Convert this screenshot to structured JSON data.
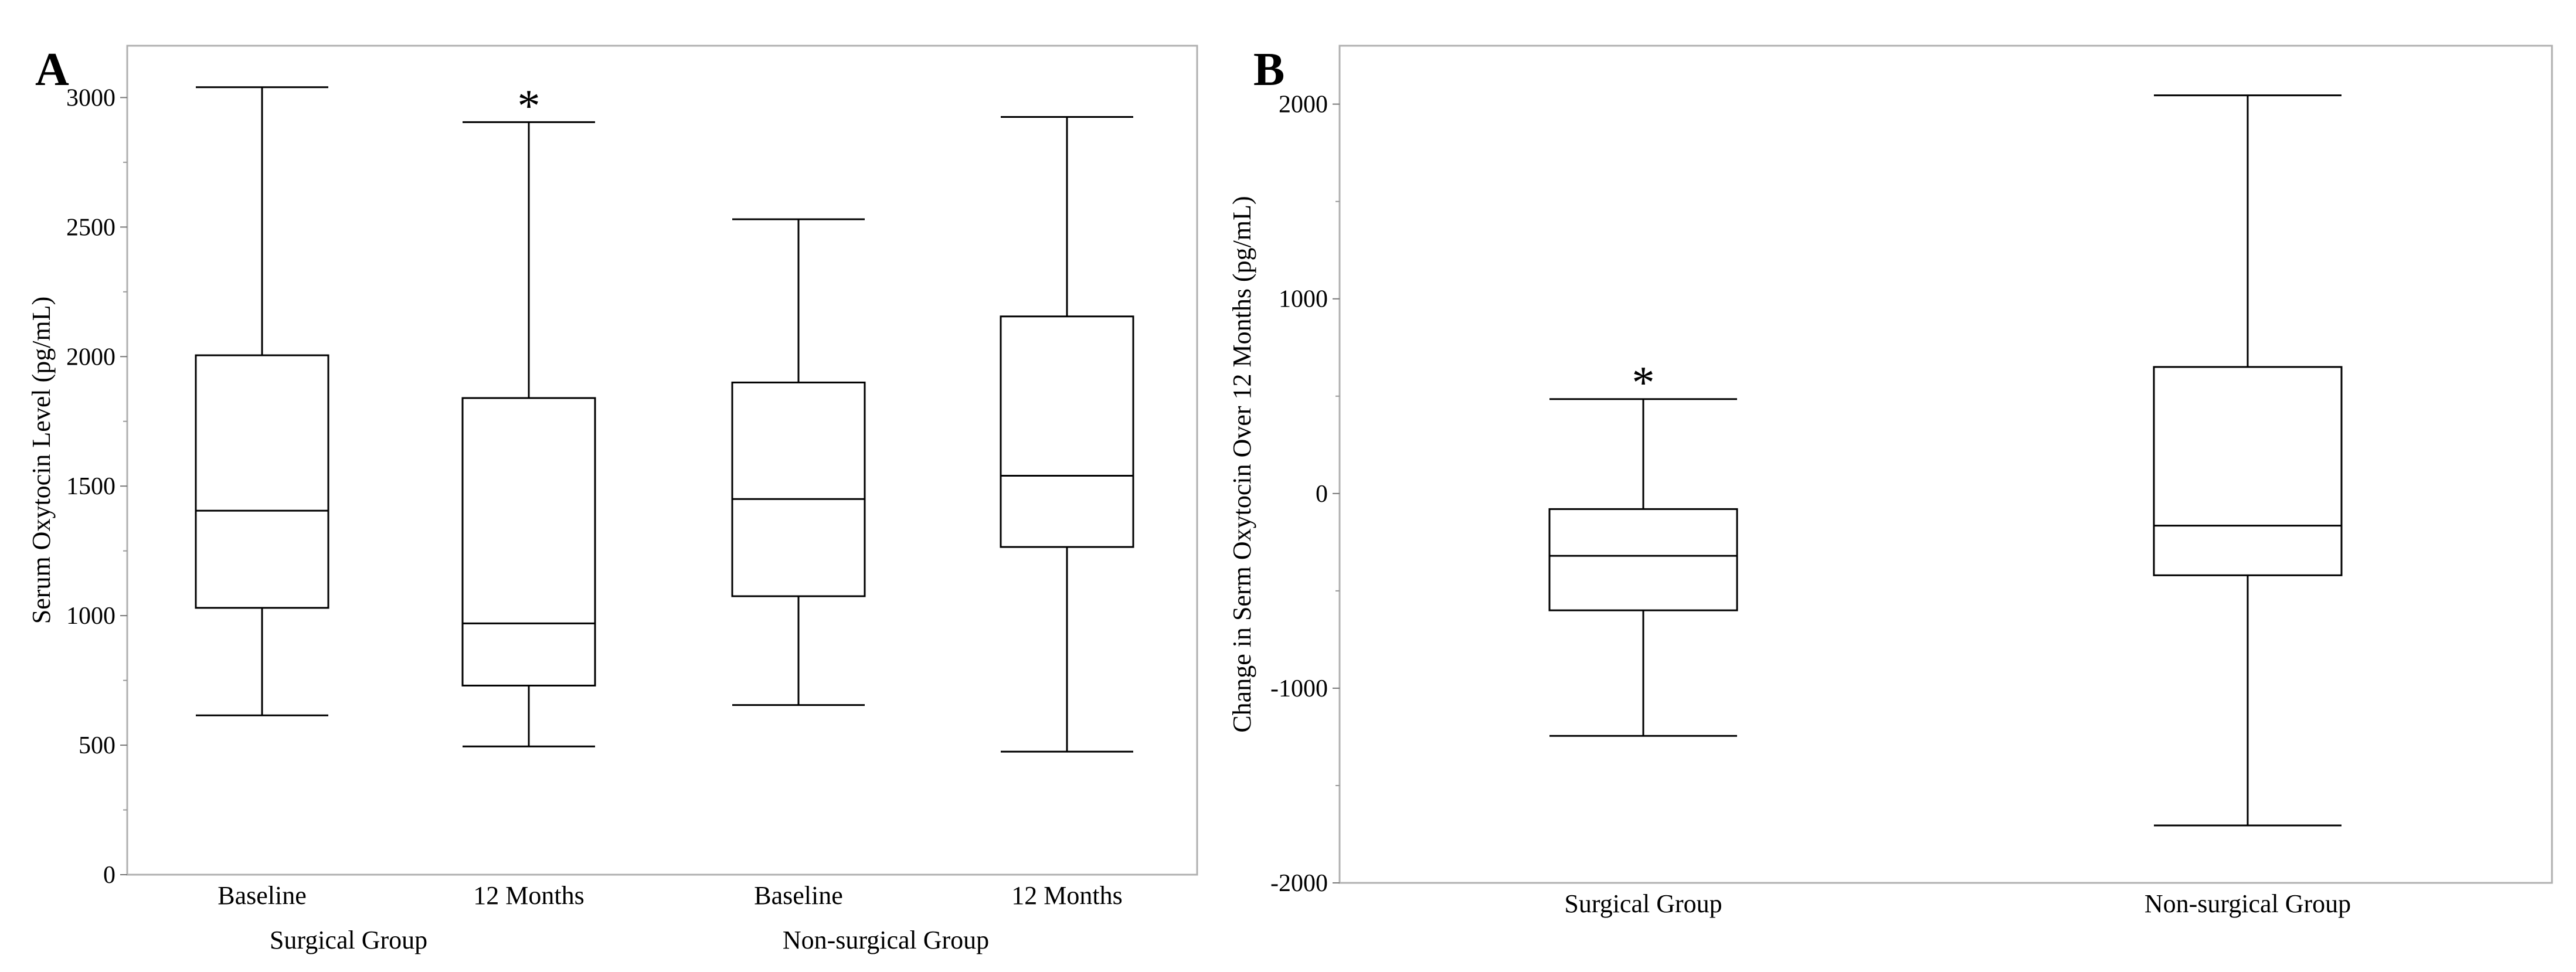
{
  "chart_data": [
    {
      "type": "box",
      "panel_label": "A",
      "ylabel": "Serum Oxytocin Level (pg/mL)",
      "ylim": [
        0,
        3200
      ],
      "yticks": [
        0,
        500,
        1000,
        1500,
        2000,
        2500,
        3000
      ],
      "minor_ticks": [
        250,
        750,
        1250,
        1750,
        2250,
        2750
      ],
      "categories": [
        "Baseline",
        "12 Months",
        "Baseline",
        "12 Months"
      ],
      "groups": [
        {
          "label": "Surgical Group",
          "span": [
            0,
            1
          ]
        },
        {
          "label": "Non-surgical Group",
          "span": [
            2,
            3
          ]
        }
      ],
      "boxes": [
        {
          "min": 615,
          "q1": 1030,
          "median": 1405,
          "q3": 2005,
          "max": 3040,
          "annotation": ""
        },
        {
          "min": 495,
          "q1": 730,
          "median": 970,
          "q3": 1840,
          "max": 2905,
          "annotation": "*"
        },
        {
          "min": 655,
          "q1": 1075,
          "median": 1450,
          "q3": 1900,
          "max": 2530,
          "annotation": ""
        },
        {
          "min": 475,
          "q1": 1265,
          "median": 1540,
          "q3": 2155,
          "max": 2925,
          "annotation": ""
        }
      ]
    },
    {
      "type": "box",
      "panel_label": "B",
      "ylabel": "Change in Serm Oxytocin Over 12 Months (pg/mL)",
      "ylim": [
        -2000,
        2300
      ],
      "yticks": [
        -2000,
        -1000,
        0,
        1000,
        2000
      ],
      "minor_ticks": [
        -1500,
        -500,
        500,
        1500
      ],
      "categories": [
        "Surgical Group",
        "Non-surgical Group"
      ],
      "groups": [],
      "boxes": [
        {
          "min": -1245,
          "q1": -600,
          "median": -320,
          "q3": -80,
          "max": 485,
          "annotation": "*"
        },
        {
          "min": -1705,
          "q1": -420,
          "median": -165,
          "q3": 650,
          "max": 2045,
          "annotation": ""
        }
      ]
    }
  ]
}
